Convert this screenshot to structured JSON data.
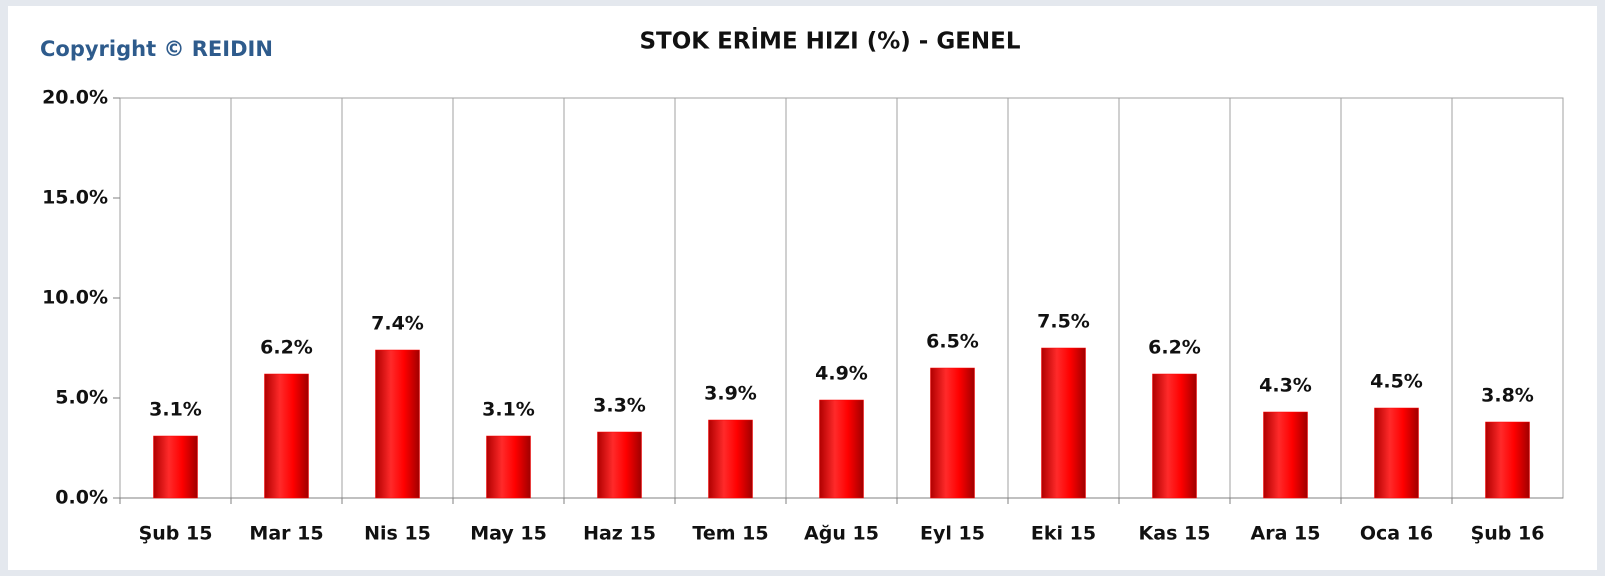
{
  "chart_data": {
    "type": "bar",
    "title": "STOK ERİME HIZI (%) - GENEL",
    "annotation": "Copyright © REIDIN",
    "categories": [
      "Şub 15",
      "Mar 15",
      "Nis 15",
      "May 15",
      "Haz 15",
      "Tem 15",
      "Ağu 15",
      "Eyl 15",
      "Eki 15",
      "Kas 15",
      "Ara 15",
      "Oca 16",
      "Şub 16"
    ],
    "values": [
      3.1,
      6.2,
      7.4,
      3.1,
      3.3,
      3.9,
      4.9,
      6.5,
      7.5,
      6.2,
      4.3,
      4.5,
      3.8
    ],
    "value_labels": [
      "3.1%",
      "6.2%",
      "7.4%",
      "3.1%",
      "3.3%",
      "3.9%",
      "4.9%",
      "6.5%",
      "7.5%",
      "6.2%",
      "4.3%",
      "4.5%",
      "3.8%"
    ],
    "color": "#ff0000",
    "ylim": [
      0,
      20
    ],
    "yticks": [
      {
        "value": 0,
        "label": "0.0%"
      },
      {
        "value": 5,
        "label": "5.0%"
      },
      {
        "value": 10,
        "label": "10.0%"
      },
      {
        "value": 15,
        "label": "15.0%"
      },
      {
        "value": 20,
        "label": "20.0%"
      }
    ],
    "grid": true
  }
}
